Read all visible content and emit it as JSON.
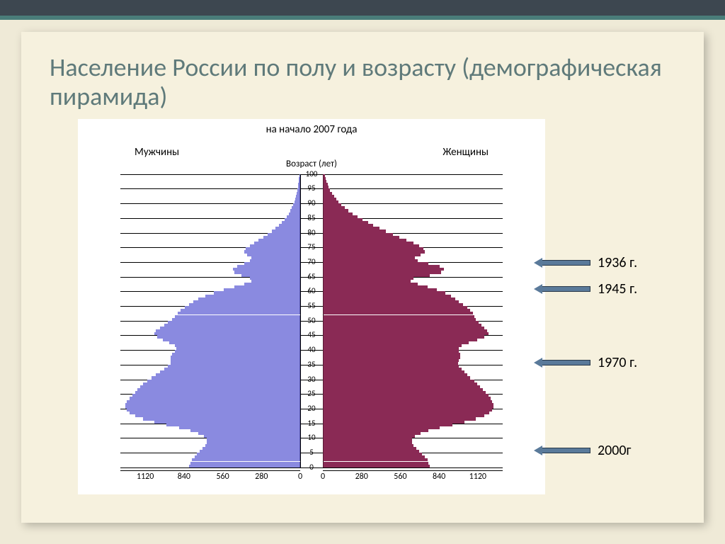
{
  "slide": {
    "title": "Население России по полу и возрасту (демографическая пирамида)",
    "chart": {
      "type": "population-pyramid",
      "subtitle": "на начало 2007 года",
      "left_header": "Мужчины",
      "right_header": "Женщины",
      "axis_label": "Возраст (лет)",
      "age_ticks": [
        0,
        5,
        10,
        15,
        20,
        25,
        30,
        35,
        40,
        45,
        50,
        55,
        60,
        65,
        70,
        75,
        80,
        85,
        90,
        95,
        100
      ],
      "x_ticks_left": [
        1120,
        840,
        560,
        280,
        0
      ],
      "x_ticks_right": [
        0,
        280,
        560,
        840,
        1120
      ],
      "xmax": 1300,
      "colors": {
        "male_fill": "#8a8ae0",
        "male_stroke": "#5a5ab0",
        "female_fill": "#8a2a55",
        "female_stroke": "#5a1a35",
        "grid": "#000000",
        "background": "#ffffff"
      },
      "bars": [
        {
          "age": 99,
          "m": 2,
          "f": 10
        },
        {
          "age": 98,
          "m": 4,
          "f": 15
        },
        {
          "age": 97,
          "m": 6,
          "f": 22
        },
        {
          "age": 96,
          "m": 8,
          "f": 30
        },
        {
          "age": 95,
          "m": 10,
          "f": 38
        },
        {
          "age": 94,
          "m": 14,
          "f": 48
        },
        {
          "age": 93,
          "m": 18,
          "f": 60
        },
        {
          "age": 92,
          "m": 24,
          "f": 75
        },
        {
          "age": 91,
          "m": 30,
          "f": 92
        },
        {
          "age": 90,
          "m": 38,
          "f": 110
        },
        {
          "age": 89,
          "m": 46,
          "f": 130
        },
        {
          "age": 88,
          "m": 56,
          "f": 155
        },
        {
          "age": 87,
          "m": 66,
          "f": 180
        },
        {
          "age": 86,
          "m": 78,
          "f": 210
        },
        {
          "age": 85,
          "m": 92,
          "f": 245
        },
        {
          "age": 84,
          "m": 110,
          "f": 280
        },
        {
          "age": 83,
          "m": 130,
          "f": 320
        },
        {
          "age": 82,
          "m": 150,
          "f": 360
        },
        {
          "age": 81,
          "m": 175,
          "f": 405
        },
        {
          "age": 80,
          "m": 200,
          "f": 450
        },
        {
          "age": 79,
          "m": 230,
          "f": 500
        },
        {
          "age": 78,
          "m": 260,
          "f": 550
        },
        {
          "age": 77,
          "m": 295,
          "f": 600
        },
        {
          "age": 76,
          "m": 330,
          "f": 650
        },
        {
          "age": 75,
          "m": 360,
          "f": 690
        },
        {
          "age": 74,
          "m": 390,
          "f": 720
        },
        {
          "age": 73,
          "m": 400,
          "f": 730
        },
        {
          "age": 72,
          "m": 380,
          "f": 700
        },
        {
          "age": 71,
          "m": 350,
          "f": 660
        },
        {
          "age": 70,
          "m": 360,
          "f": 680
        },
        {
          "age": 69,
          "m": 400,
          "f": 760
        },
        {
          "age": 68,
          "m": 450,
          "f": 840
        },
        {
          "age": 67,
          "m": 480,
          "f": 870
        },
        {
          "age": 66,
          "m": 470,
          "f": 850
        },
        {
          "age": 65,
          "m": 420,
          "f": 770
        },
        {
          "age": 64,
          "m": 360,
          "f": 650
        },
        {
          "age": 63,
          "m": 350,
          "f": 630
        },
        {
          "age": 62,
          "m": 400,
          "f": 680
        },
        {
          "age": 61,
          "m": 470,
          "f": 750
        },
        {
          "age": 60,
          "m": 550,
          "f": 820
        },
        {
          "age": 59,
          "m": 620,
          "f": 880
        },
        {
          "age": 58,
          "m": 680,
          "f": 920
        },
        {
          "age": 57,
          "m": 730,
          "f": 950
        },
        {
          "age": 56,
          "m": 770,
          "f": 980
        },
        {
          "age": 55,
          "m": 800,
          "f": 1010
        },
        {
          "age": 54,
          "m": 830,
          "f": 1040
        },
        {
          "age": 53,
          "m": 860,
          "f": 1060
        },
        {
          "age": 52,
          "m": 880,
          "f": 1080
        },
        {
          "age": 51,
          "m": 900,
          "f": 1090
        },
        {
          "age": 50,
          "m": 920,
          "f": 1100
        },
        {
          "age": 49,
          "m": 950,
          "f": 1120
        },
        {
          "age": 48,
          "m": 980,
          "f": 1140
        },
        {
          "age": 47,
          "m": 1010,
          "f": 1160
        },
        {
          "age": 46,
          "m": 1040,
          "f": 1180
        },
        {
          "age": 45,
          "m": 1050,
          "f": 1190
        },
        {
          "age": 44,
          "m": 1030,
          "f": 1160
        },
        {
          "age": 43,
          "m": 990,
          "f": 1110
        },
        {
          "age": 42,
          "m": 940,
          "f": 1050
        },
        {
          "age": 41,
          "m": 900,
          "f": 1000
        },
        {
          "age": 40,
          "m": 890,
          "f": 980
        },
        {
          "age": 39,
          "m": 900,
          "f": 980
        },
        {
          "age": 38,
          "m": 920,
          "f": 990
        },
        {
          "age": 37,
          "m": 930,
          "f": 990
        },
        {
          "age": 36,
          "m": 930,
          "f": 980
        },
        {
          "age": 35,
          "m": 930,
          "f": 970
        },
        {
          "age": 34,
          "m": 950,
          "f": 980
        },
        {
          "age": 33,
          "m": 980,
          "f": 1000
        },
        {
          "age": 32,
          "m": 1010,
          "f": 1020
        },
        {
          "age": 31,
          "m": 1040,
          "f": 1040
        },
        {
          "age": 30,
          "m": 1070,
          "f": 1060
        },
        {
          "age": 29,
          "m": 1100,
          "f": 1090
        },
        {
          "age": 28,
          "m": 1130,
          "f": 1110
        },
        {
          "age": 27,
          "m": 1150,
          "f": 1130
        },
        {
          "age": 26,
          "m": 1170,
          "f": 1150
        },
        {
          "age": 25,
          "m": 1190,
          "f": 1170
        },
        {
          "age": 24,
          "m": 1210,
          "f": 1190
        },
        {
          "age": 23,
          "m": 1230,
          "f": 1210
        },
        {
          "age": 22,
          "m": 1250,
          "f": 1220
        },
        {
          "age": 21,
          "m": 1260,
          "f": 1230
        },
        {
          "age": 20,
          "m": 1260,
          "f": 1230
        },
        {
          "age": 19,
          "m": 1250,
          "f": 1220
        },
        {
          "age": 18,
          "m": 1230,
          "f": 1200
        },
        {
          "age": 17,
          "m": 1190,
          "f": 1160
        },
        {
          "age": 16,
          "m": 1130,
          "f": 1100
        },
        {
          "age": 15,
          "m": 1050,
          "f": 1020
        },
        {
          "age": 14,
          "m": 960,
          "f": 930
        },
        {
          "age": 13,
          "m": 870,
          "f": 840
        },
        {
          "age": 12,
          "m": 790,
          "f": 760
        },
        {
          "age": 11,
          "m": 730,
          "f": 700
        },
        {
          "age": 10,
          "m": 690,
          "f": 660
        },
        {
          "age": 9,
          "m": 670,
          "f": 640
        },
        {
          "age": 8,
          "m": 670,
          "f": 640
        },
        {
          "age": 7,
          "m": 680,
          "f": 650
        },
        {
          "age": 6,
          "m": 700,
          "f": 670
        },
        {
          "age": 5,
          "m": 720,
          "f": 690
        },
        {
          "age": 4,
          "m": 740,
          "f": 710
        },
        {
          "age": 3,
          "m": 760,
          "f": 730
        },
        {
          "age": 2,
          "m": 780,
          "f": 750
        },
        {
          "age": 1,
          "m": 790,
          "f": 760
        },
        {
          "age": 0,
          "m": 800,
          "f": 770
        }
      ]
    },
    "annotations": [
      {
        "label": "1936 г.",
        "age": 71
      },
      {
        "label": "1945 г.",
        "age": 62
      },
      {
        "label": "1970 г.",
        "age": 37
      },
      {
        "label": "2000г",
        "age": 7
      }
    ],
    "annotation_style": {
      "arrow_fill": "#5a7a9a",
      "arrow_border": "#2a3a4a",
      "font_size": 20
    }
  }
}
